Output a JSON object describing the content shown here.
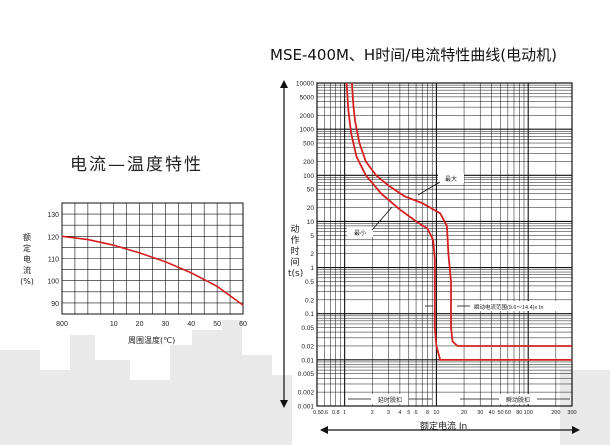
{
  "left_chart": {
    "title": "电流—温度特性",
    "ylabel": "额定电流(%)",
    "xlabel": "周围温度(℃)",
    "chart_data": {
      "type": "line",
      "x_ticks": [
        "800",
        "10",
        "20",
        "30",
        "40",
        "50",
        "60"
      ],
      "y_ticks": [
        "130",
        "120",
        "110",
        "100",
        "90"
      ],
      "ylim": [
        85,
        135
      ],
      "series": [
        {
          "x": [
            -10,
            0,
            10,
            20,
            30,
            40,
            50,
            60
          ],
          "y": [
            120,
            118.5,
            116,
            112.5,
            108.5,
            103.5,
            97.5,
            89
          ]
        }
      ],
      "grid": true,
      "line_color": "#d42020"
    }
  },
  "right_chart": {
    "title": "MSE-400M、H时间/电流特性曲线(电动机)",
    "ylabel": "动作时间t(s)",
    "xlabel": "额定电流  In",
    "chart_data": {
      "type": "line",
      "y_scale": "log",
      "x_scale": "log",
      "y_ticks": [
        "10000",
        "5000",
        "2000",
        "1000",
        "500",
        "200",
        "100",
        "50",
        "20",
        "10",
        "5",
        "2",
        "1",
        "0.5",
        "0.2",
        "0.1",
        "0.05",
        "0.02",
        "0.01",
        "0.005",
        "0.002",
        "0.001"
      ],
      "x_ticks": [
        "0.5",
        "0.6",
        "0.8",
        "1",
        "2",
        "3",
        "4",
        "5",
        "6",
        "8",
        "10",
        "20",
        "30",
        "40",
        "50",
        "60",
        "80",
        "100",
        "200",
        "300"
      ],
      "ylim": [
        0.001,
        10000
      ],
      "xlim": [
        0.5,
        300
      ],
      "series": [
        {
          "name": "最大",
          "x": [
            1.2,
            1.25,
            1.3,
            1.45,
            1.7,
            2.2,
            3,
            4.5,
            7,
            11,
            13,
            13.5,
            14.4,
            14.4,
            15,
            17,
            300
          ],
          "y": [
            10000,
            3000,
            1500,
            500,
            200,
            100,
            60,
            35,
            25,
            15,
            8,
            2,
            0.5,
            0.05,
            0.025,
            0.02,
            0.02
          ]
        },
        {
          "name": "最小",
          "x": [
            1.05,
            1.1,
            1.18,
            1.35,
            1.7,
            2.5,
            4,
            6,
            8,
            9.2,
            9.6,
            9.6,
            10,
            11,
            300
          ],
          "y": [
            10000,
            2500,
            800,
            250,
            100,
            40,
            18,
            10,
            7,
            4,
            1.5,
            0.05,
            0.02,
            0.01,
            0.01
          ]
        }
      ],
      "annotations": {
        "max_label": "最大",
        "min_label": "最小",
        "instant_range": "瞬动电流范围(9.6～14.4)x In",
        "delay_trip": "延时脱扣",
        "instant_trip": "瞬动脱扣"
      },
      "grid": true,
      "line_color": "#d42020"
    }
  },
  "colors": {
    "curve": "#d42020",
    "grid": "#111111",
    "background_buildings": "#e6e6e6"
  }
}
